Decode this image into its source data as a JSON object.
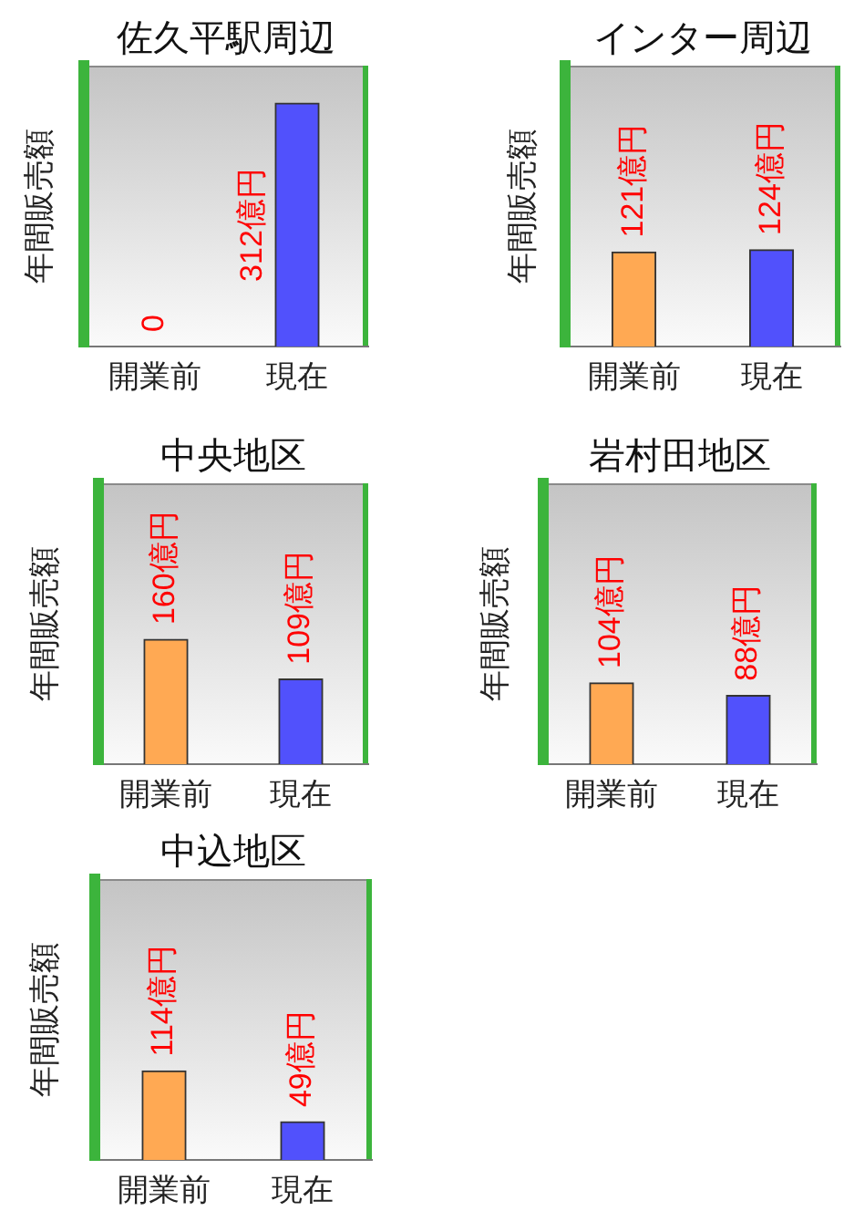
{
  "chart_data": [
    {
      "type": "bar",
      "title": "佐久平駅周辺",
      "ylabel": "年間販売額",
      "categories": [
        "開業前",
        "現在"
      ],
      "values": [
        0,
        312
      ],
      "colors": [
        "#ffa953",
        "#5151fc"
      ],
      "value_labels": [
        "0",
        "312億円"
      ],
      "ylim": [
        0,
        360
      ],
      "tick_labels": "x"
    },
    {
      "type": "bar",
      "title": "インター周辺",
      "ylabel": "年間販売額",
      "categories": [
        "開業前",
        "現在"
      ],
      "values": [
        121,
        124
      ],
      "colors": [
        "#ffa953",
        "#5151fc"
      ],
      "value_labels": [
        "121億円",
        "124億円"
      ],
      "ylim": [
        0,
        360
      ],
      "tick_labels": "x"
    },
    {
      "type": "bar",
      "title": "中央地区",
      "ylabel": "年間販売額",
      "categories": [
        "開業前",
        "現在"
      ],
      "values": [
        160,
        109
      ],
      "colors": [
        "#ffa953",
        "#5151fc"
      ],
      "value_labels": [
        "160億円",
        "109億円"
      ],
      "ylim": [
        0,
        360
      ],
      "tick_labels": "x"
    },
    {
      "type": "bar",
      "title": "岩村田地区",
      "ylabel": "年間販売額",
      "categories": [
        "開業前",
        "現在"
      ],
      "values": [
        104,
        88
      ],
      "colors": [
        "#ffa953",
        "#5151fc"
      ],
      "value_labels": [
        "104億円",
        "88億円"
      ],
      "ylim": [
        0,
        360
      ],
      "tick_labels": "x"
    },
    {
      "type": "bar",
      "title": "中込地区",
      "ylabel": "年間販売額",
      "categories": [
        "開業前",
        "現在"
      ],
      "values": [
        114,
        49
      ],
      "colors": [
        "#ffa953",
        "#5151fc"
      ],
      "value_labels": [
        "114億円",
        "49億円"
      ],
      "ylim": [
        0,
        360
      ],
      "tick_labels": "x"
    }
  ]
}
